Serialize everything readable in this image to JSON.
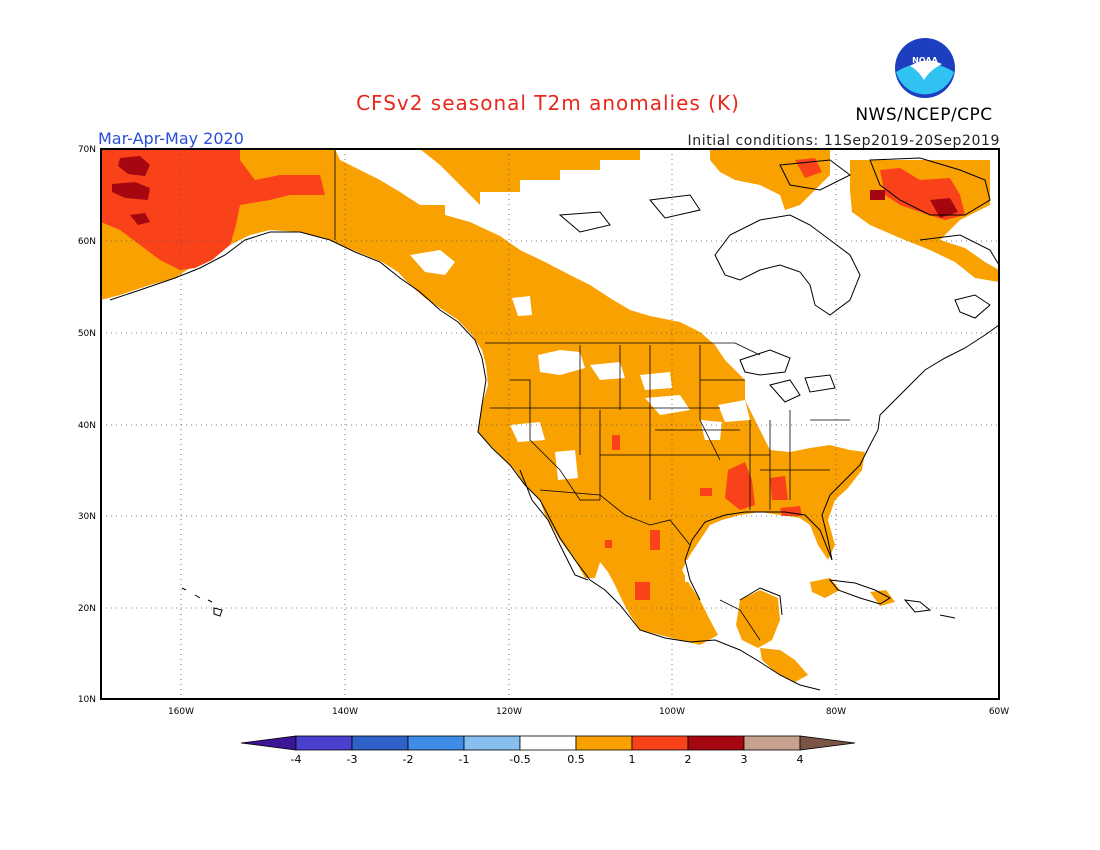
{
  "header": {
    "title": "CFSv2 seasonal T2m anomalies (K)",
    "season": "Mar-Apr-May 2020",
    "initial_conditions": "Initial conditions: 11Sep2019-20Sep2019",
    "org": "NWS/NCEP/CPC",
    "logo_text": "NOAA"
  },
  "map": {
    "lat_labels": [
      "70N",
      "60N",
      "50N",
      "40N",
      "30N",
      "20N",
      "10N"
    ],
    "lon_labels": [
      "160W",
      "140W",
      "120W",
      "100W",
      "80W",
      "60W"
    ],
    "lon_range": [
      -172,
      -60
    ],
    "lat_range": [
      10,
      70
    ]
  },
  "colorbar": {
    "colors": [
      "#3c1496",
      "#4a3fcf",
      "#2f62c9",
      "#3f8ce6",
      "#86bff0",
      "#ffffff",
      "#f9a100",
      "#f9421a",
      "#a6060f",
      "#c8a28e",
      "#7a5445"
    ],
    "labels": [
      "-4",
      "-3",
      "-2",
      "-1",
      "-0.5",
      "0.5",
      "1",
      "2",
      "3",
      "4"
    ]
  },
  "anomaly_regions": [
    {
      "level": "0.5-1",
      "color": "#f9a100",
      "desc": "Broad warm anomaly over western/central North America"
    },
    {
      "level": "1-2",
      "color": "#f9421a",
      "desc": "Alaska, Gulf Coast, northeast Canada"
    },
    {
      "level": "2-3",
      "color": "#a6060f",
      "desc": "Western Alaska coast, Baffin region"
    }
  ]
}
